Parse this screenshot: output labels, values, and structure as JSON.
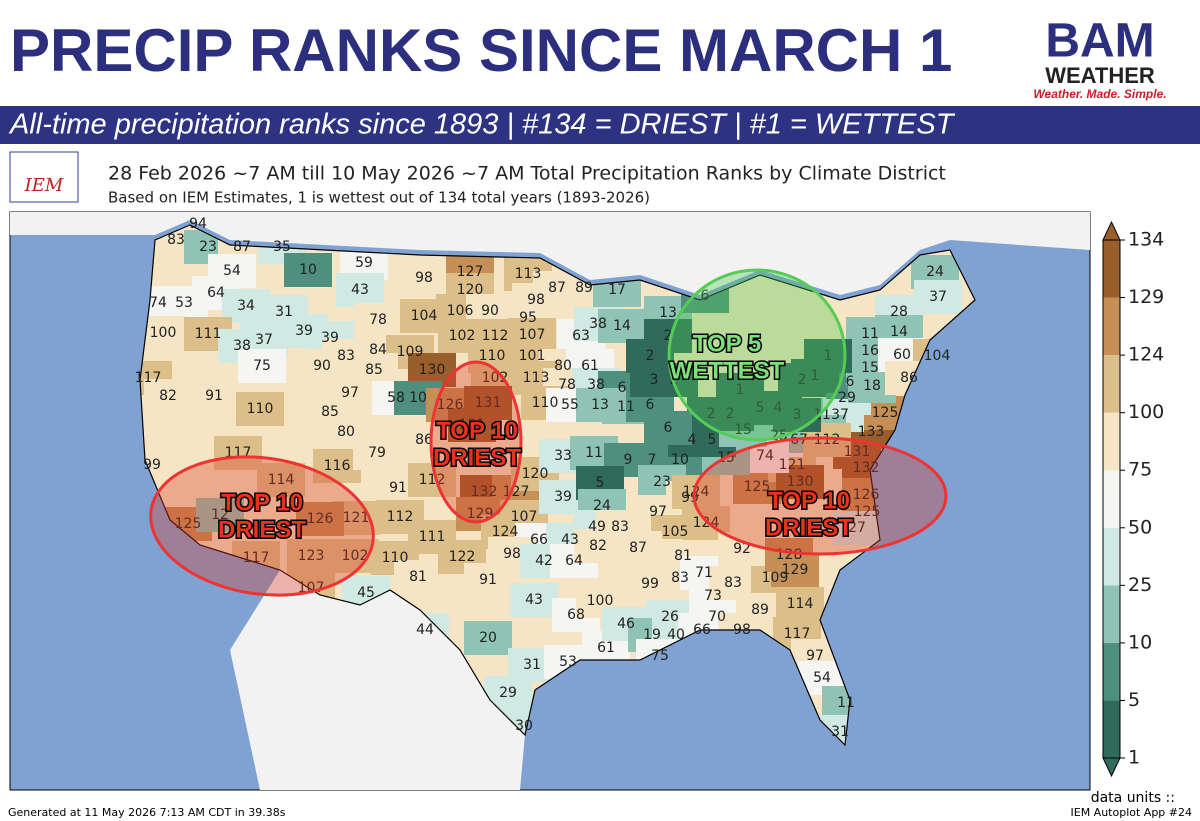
{
  "header": {
    "title": "PRECIP RANKS SINCE MARCH 1",
    "subtitle": "All-time precipitation ranks since 1893 | #134 = DRIEST | #1 = WETTEST",
    "logo": {
      "brand": "BAM",
      "name": "WEATHER",
      "tagline": "Weather. Made. Simple."
    }
  },
  "map": {
    "logo": "IEM",
    "title": "28 Feb 2026 ~7 AM till 10 May 2026 ~7 AM Total Precipitation Ranks by Climate District",
    "subtitle": "Based on IEM Estimates, 1 is wettest out of 134 total years (1893-2026)",
    "district_ranks": [
      83,
      94,
      23,
      87,
      35,
      54,
      10,
      59,
      98,
      127,
      113,
      87,
      89,
      17,
      64,
      74,
      53,
      34,
      43,
      120,
      98,
      100,
      111,
      31,
      39,
      78,
      104,
      106,
      90,
      95,
      107,
      38,
      37,
      39,
      84,
      109,
      102,
      112,
      63,
      38,
      14,
      117,
      82,
      91,
      75,
      90,
      83,
      85,
      130,
      110,
      101,
      80,
      61,
      110,
      85,
      97,
      58,
      10,
      102,
      113,
      78,
      38,
      6,
      99,
      117,
      114,
      116,
      80,
      79,
      86,
      126,
      131,
      110,
      55,
      13,
      11,
      91,
      112,
      132,
      127,
      120,
      33,
      11,
      9,
      7,
      10,
      125,
      121,
      112,
      126,
      129,
      107,
      39,
      5,
      24,
      23,
      99,
      117,
      123,
      102,
      110,
      111,
      124,
      66,
      43,
      49,
      83,
      97,
      105,
      107,
      45,
      81,
      122,
      98,
      42,
      64,
      82,
      87,
      44,
      20,
      91,
      43,
      68,
      100,
      61,
      99,
      83,
      81,
      71,
      31,
      53,
      46,
      26,
      19,
      40,
      66,
      75,
      73,
      70,
      83,
      109,
      89,
      98,
      114,
      117,
      97,
      54,
      11,
      31,
      29,
      30,
      124,
      124,
      125,
      92,
      128,
      129,
      121,
      130,
      132,
      131,
      126,
      125,
      27,
      133,
      125,
      37,
      11,
      67,
      112,
      25,
      74,
      15,
      4,
      5,
      15,
      2,
      2,
      5,
      4,
      3,
      29,
      6,
      18,
      15,
      16,
      11,
      28,
      14,
      60,
      104,
      86,
      24,
      37,
      13,
      6,
      2,
      2,
      1,
      1,
      2,
      6,
      6,
      3,
      2,
      1,
      12,
      131
    ],
    "annotations": [
      {
        "lines": [
          "TOP 10",
          "DRIEST"
        ],
        "color": "#e8321e"
      },
      {
        "lines": [
          "TOP 10",
          "DRIEST"
        ],
        "color": "#e8321e"
      },
      {
        "lines": [
          "TOP 10",
          "DRIEST"
        ],
        "color": "#e8321e"
      },
      {
        "lines": [
          "TOP 5",
          "WETTEST"
        ],
        "color": "#7ee07a"
      }
    ],
    "colorbar": {
      "ticks": [
        1,
        5,
        10,
        25,
        50,
        75,
        100,
        124,
        129,
        134
      ],
      "colors": [
        "#2f6a5b",
        "#4f8f7d",
        "#8fc4b5",
        "#d0e9e3",
        "#f5f5f3",
        "#f5e5c4",
        "#dcbf88",
        "#c58f55",
        "#9a5e2c"
      ]
    },
    "units": "data units ::"
  },
  "footer": {
    "left": "Generated at 11 May 2026 7:13 AM CDT in 39.38s",
    "right": "IEM Autoplot App #24"
  }
}
